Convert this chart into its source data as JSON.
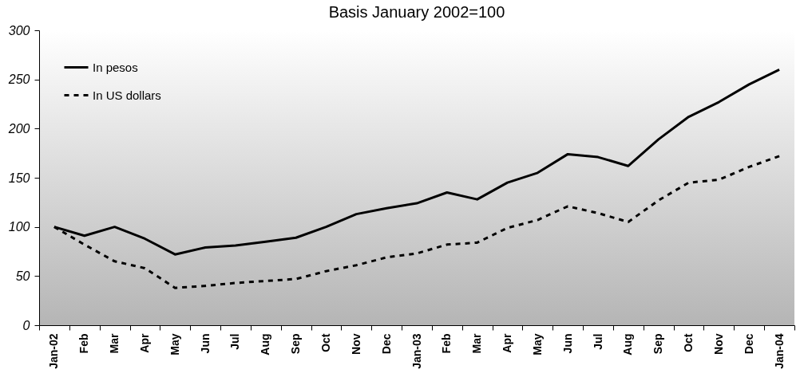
{
  "chart_data": {
    "type": "line",
    "title": "Basis January 2002=100",
    "categories": [
      "Jan-02",
      "Feb",
      "Mar",
      "Apr",
      "May",
      "Jun",
      "Jul",
      "Aug",
      "Sep",
      "Oct",
      "Nov",
      "Dec",
      "Jan-03",
      "Feb",
      "Mar",
      "Apr",
      "May",
      "Jun",
      "Jul",
      "Aug",
      "Sep",
      "Oct",
      "Nov",
      "Dec",
      "Jan-04"
    ],
    "series": [
      {
        "name": "In pesos",
        "color": "#000000",
        "line_style": "solid",
        "values": [
          100,
          91,
          100,
          88,
          72,
          79,
          81,
          85,
          89,
          100,
          113,
          119,
          124,
          135,
          128,
          145,
          155,
          174,
          171,
          162,
          189,
          212,
          227,
          245,
          260
        ]
      },
      {
        "name": "In US dollars",
        "color": "#000000",
        "line_style": "dashed",
        "values": [
          100,
          82,
          65,
          58,
          38,
          40,
          43,
          45,
          47,
          55,
          61,
          69,
          73,
          82,
          84,
          99,
          107,
          121,
          114,
          105,
          127,
          145,
          148,
          161,
          172
        ]
      }
    ],
    "ylim": [
      0,
      300
    ],
    "yticks": [
      0,
      50,
      100,
      150,
      200,
      250,
      300
    ],
    "grid": false,
    "legend": "top left",
    "marker": "none"
  }
}
